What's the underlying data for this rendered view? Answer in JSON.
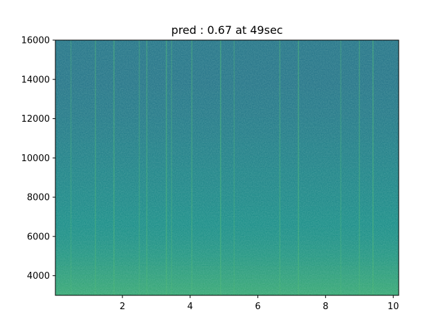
{
  "chart_data": {
    "type": "heatmap",
    "kind": "spectrogram",
    "title": "pred : 0.67 at 49sec",
    "xlabel": "",
    "ylabel": "",
    "xlim": [
      0.02,
      10.16
    ],
    "ylim": [
      3000,
      16000
    ],
    "x_ticks": [
      2,
      4,
      6,
      8,
      10
    ],
    "x_tick_labels": [
      "2",
      "4",
      "6",
      "8",
      "10"
    ],
    "y_ticks": [
      4000,
      6000,
      8000,
      10000,
      12000,
      14000,
      16000
    ],
    "y_tick_labels": [
      "4000",
      "6000",
      "8000",
      "10000",
      "12000",
      "14000",
      "16000"
    ],
    "colormap": "viridis",
    "grid": false,
    "intensity_profile": {
      "frequency": [
        3000,
        4000,
        5000,
        6000,
        8000,
        10000,
        12000,
        14000,
        16000
      ],
      "relative_level": [
        0.62,
        0.58,
        0.54,
        0.51,
        0.48,
        0.45,
        0.42,
        0.4,
        0.4
      ]
    },
    "bright_time_streaks": [
      0.48,
      1.2,
      1.75,
      2.5,
      2.72,
      3.3,
      3.45,
      4.05,
      4.9,
      5.3,
      6.65,
      7.2,
      8.45,
      9.0,
      9.4
    ]
  }
}
